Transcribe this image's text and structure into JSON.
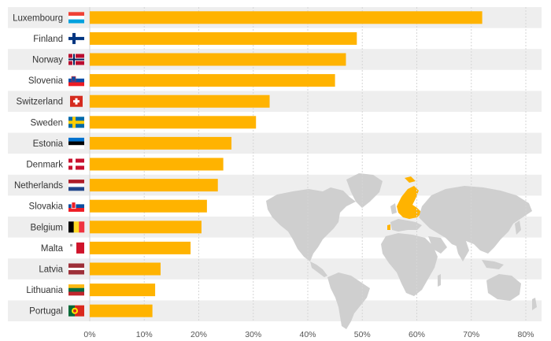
{
  "chart_data": {
    "type": "bar",
    "orientation": "horizontal",
    "categories": [
      "Luxembourg",
      "Finland",
      "Norway",
      "Slovenia",
      "Switzerland",
      "Sweden",
      "Estonia",
      "Denmark",
      "Netherlands",
      "Slovakia",
      "Belgium",
      "Malta",
      "Latvia",
      "Lithuania",
      "Portugal"
    ],
    "values": [
      72,
      49,
      47,
      45,
      33,
      30.5,
      26,
      24.5,
      23.5,
      21.5,
      20.5,
      18.5,
      13,
      12,
      11.5
    ],
    "xlim": [
      0,
      80
    ],
    "xticks": [
      0,
      10,
      20,
      30,
      40,
      50,
      60,
      70,
      80
    ],
    "tick_labels": [
      "0%",
      "10%",
      "20%",
      "30%",
      "40%",
      "50%",
      "60%",
      "70%",
      "80%"
    ],
    "grid": "vertical",
    "bar_color": "#ffb300",
    "row_band_color": "#eeeeee",
    "flags": [
      "luxembourg-flag",
      "finland-flag",
      "norway-flag",
      "slovenia-flag",
      "switzerland-flag",
      "sweden-flag",
      "estonia-flag",
      "denmark-flag",
      "netherlands-flag",
      "slovakia-flag",
      "belgium-flag",
      "malta-flag",
      "latvia-flag",
      "lithuania-flag",
      "portugal-flag"
    ],
    "inset_map": "world-map-europe-highlighted"
  }
}
